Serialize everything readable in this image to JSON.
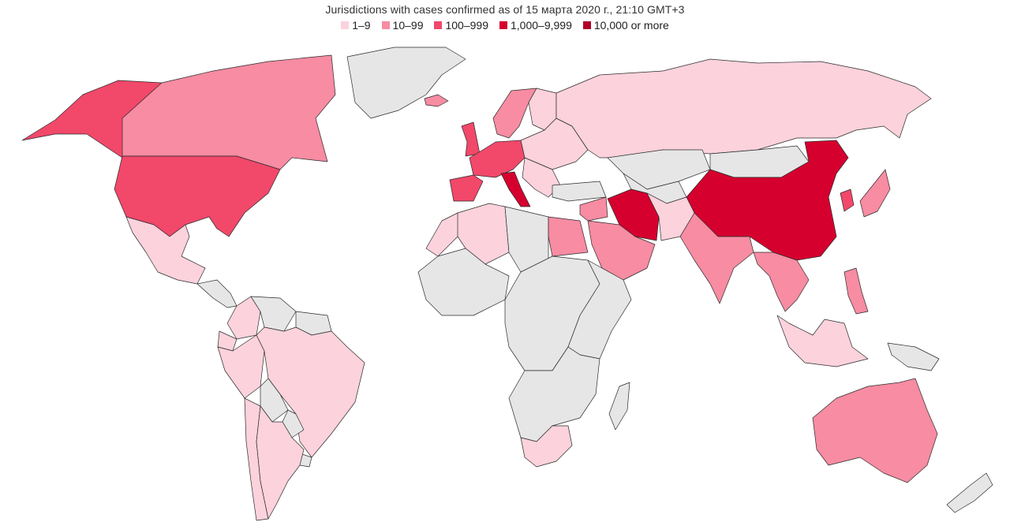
{
  "title": "Jurisdictions with cases confirmed as of 15 марта 2020 г., 21:10 GMT+3",
  "legend": [
    {
      "label": "1–9",
      "color": "#fcd2dc"
    },
    {
      "label": "10–99",
      "color": "#f78ca2"
    },
    {
      "label": "100–999",
      "color": "#f2486a"
    },
    {
      "label": "1,000–9,999",
      "color": "#d6002f"
    },
    {
      "label": "10,000 or more",
      "color": "#b1002a"
    }
  ],
  "no_data_color": "#e6e6e6",
  "regions": [
    {
      "name": "Greenland",
      "level": 0
    },
    {
      "name": "Alaska",
      "level": 3
    },
    {
      "name": "Canada",
      "level": 2
    },
    {
      "name": "United States",
      "level": 3
    },
    {
      "name": "Mexico",
      "level": 1
    },
    {
      "name": "Central America",
      "level": 0
    },
    {
      "name": "Colombia",
      "level": 1
    },
    {
      "name": "Venezuela",
      "level": 0
    },
    {
      "name": "Guiana region",
      "level": 0
    },
    {
      "name": "Ecuador",
      "level": 1
    },
    {
      "name": "Peru",
      "level": 1
    },
    {
      "name": "Brazil",
      "level": 1
    },
    {
      "name": "Bolivia",
      "level": 0
    },
    {
      "name": "Paraguay",
      "level": 0
    },
    {
      "name": "Uruguay",
      "level": 0
    },
    {
      "name": "Chile",
      "level": 1
    },
    {
      "name": "Argentina",
      "level": 1
    },
    {
      "name": "Iceland",
      "level": 2
    },
    {
      "name": "Scandinavia",
      "level": 2
    },
    {
      "name": "Finland",
      "level": 1
    },
    {
      "name": "United Kingdom",
      "level": 3
    },
    {
      "name": "Western Europe",
      "level": 3
    },
    {
      "name": "Spain",
      "level": 3
    },
    {
      "name": "Italy",
      "level": 4
    },
    {
      "name": "Eastern Europe",
      "level": 1
    },
    {
      "name": "Balkans",
      "level": 1
    },
    {
      "name": "Turkey",
      "level": 0
    },
    {
      "name": "Russia",
      "level": 1
    },
    {
      "name": "Kazakhstan",
      "level": 0
    },
    {
      "name": "Mongolia",
      "level": 0
    },
    {
      "name": "China",
      "level": 4
    },
    {
      "name": "Korea",
      "level": 3
    },
    {
      "name": "Japan",
      "level": 2
    },
    {
      "name": "Iran",
      "level": 4
    },
    {
      "name": "Arabian Peninsula",
      "level": 2
    },
    {
      "name": "Middle East",
      "level": 2
    },
    {
      "name": "Central Asia",
      "level": 0
    },
    {
      "name": "Afghanistan & Pakistan",
      "level": 1
    },
    {
      "name": "India",
      "level": 2
    },
    {
      "name": "Mainland Southeast Asia",
      "level": 2
    },
    {
      "name": "Malaysia & Indonesia",
      "level": 1
    },
    {
      "name": "Philippines",
      "level": 2
    },
    {
      "name": "Papua New Guinea",
      "level": 0
    },
    {
      "name": "Australia",
      "level": 2
    },
    {
      "name": "New Zealand",
      "level": 0
    },
    {
      "name": "Morocco",
      "level": 1
    },
    {
      "name": "Algeria",
      "level": 1
    },
    {
      "name": "Libya & Sahel",
      "level": 0
    },
    {
      "name": "Egypt",
      "level": 2
    },
    {
      "name": "West Africa",
      "level": 0
    },
    {
      "name": "Central Africa",
      "level": 0
    },
    {
      "name": "East Africa",
      "level": 0
    },
    {
      "name": "Southern Africa",
      "level": 0
    },
    {
      "name": "South Africa",
      "level": 1
    },
    {
      "name": "Madagascar",
      "level": 0
    }
  ]
}
